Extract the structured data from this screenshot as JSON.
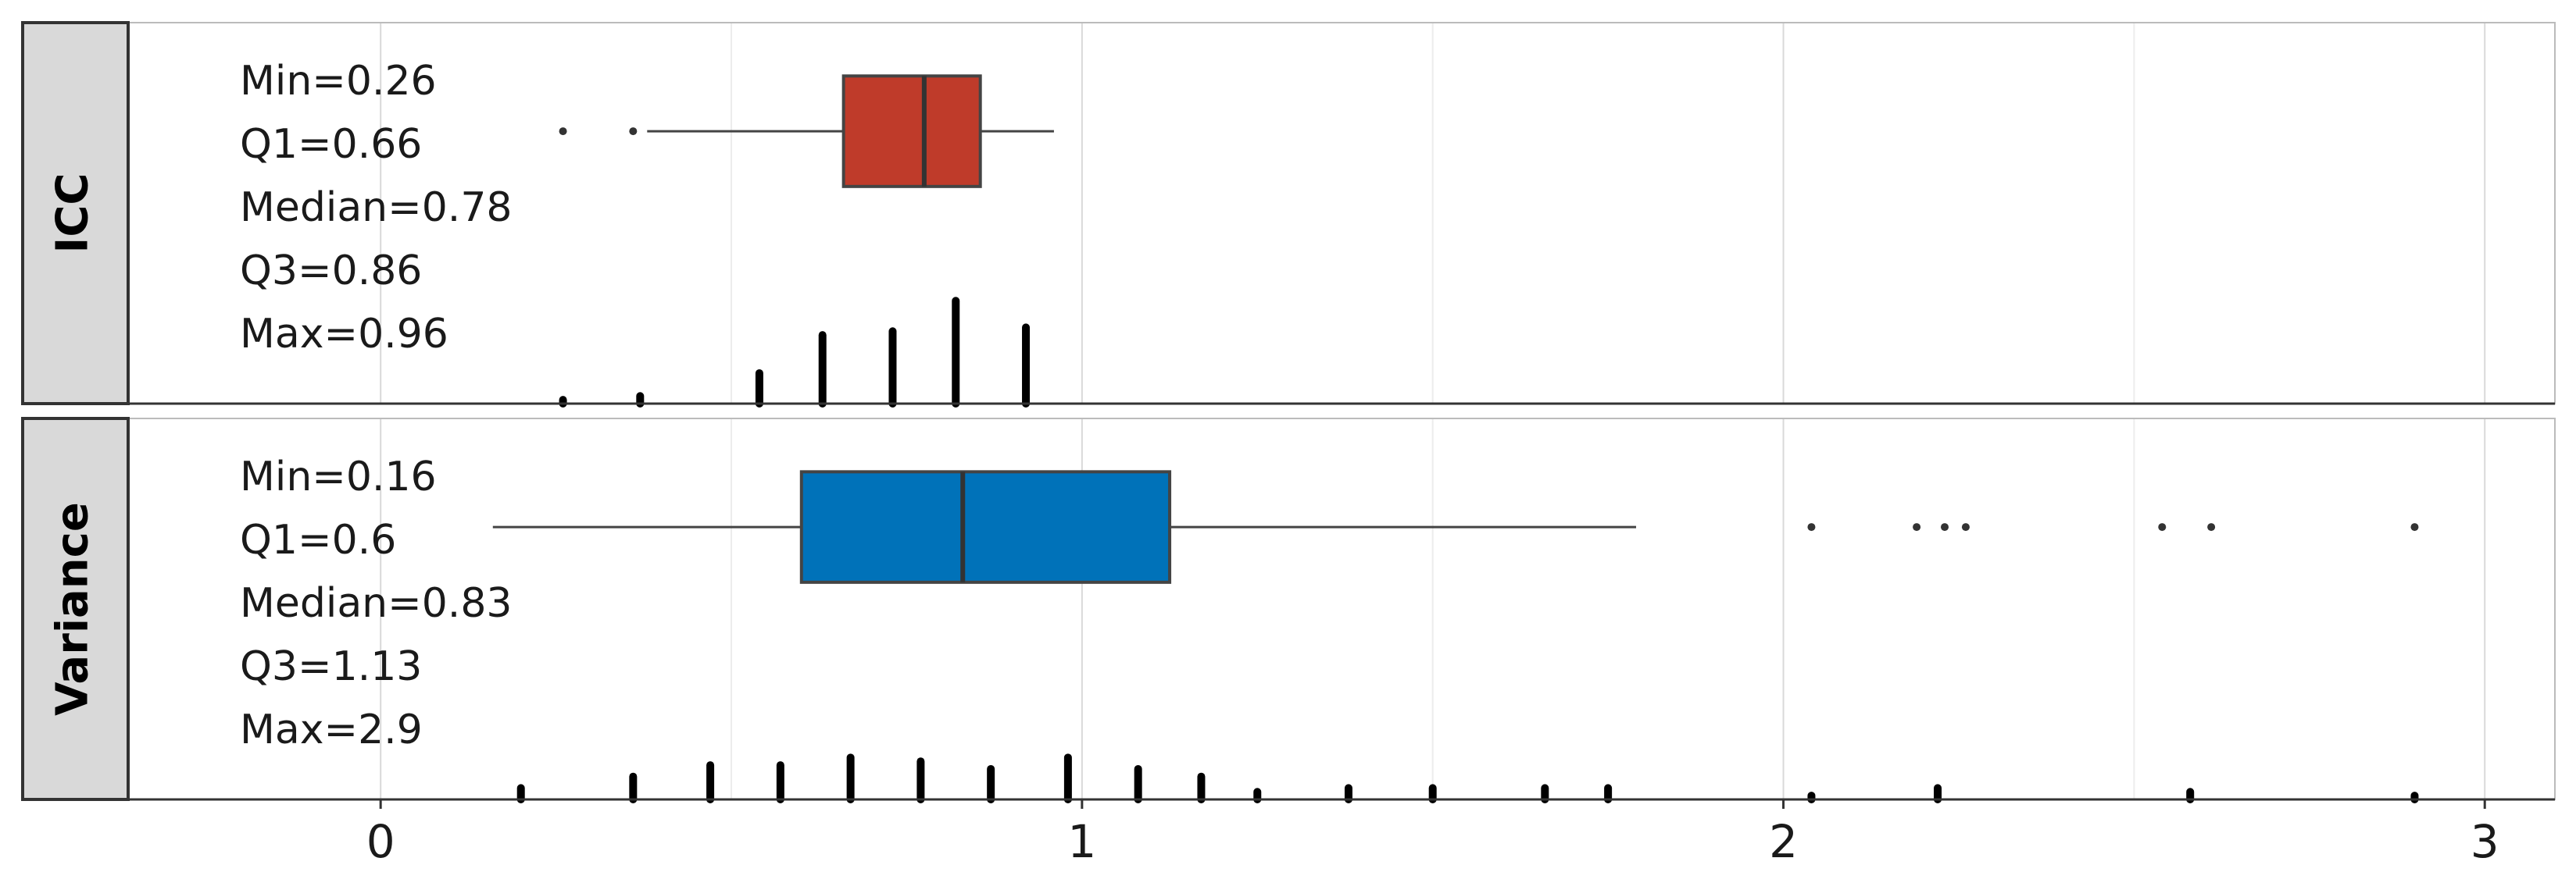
{
  "chart_data": [
    {
      "type": "box",
      "facet": "ICC",
      "color": "#bf3b2a",
      "annotations": [
        "Min=0.26",
        "Q1=0.66",
        "Median=0.78",
        "Q3=0.86",
        "Max=0.96"
      ],
      "box": {
        "whislo": 0.38,
        "q1": 0.66,
        "med": 0.775,
        "q3": 0.855,
        "whishi": 0.96
      },
      "fliers": [
        0.26,
        0.36
      ],
      "rug": {
        "x": [
          0.26,
          0.37,
          0.54,
          0.63,
          0.73,
          0.82,
          0.92
        ],
        "values": [
          1,
          2,
          8,
          18,
          19,
          27,
          20
        ]
      },
      "rug_ylim": [
        0,
        100
      ],
      "xlim": [
        -0.36,
        3.1
      ],
      "xticks": [
        0,
        1,
        2,
        3
      ],
      "xminor": [
        0.5,
        1.5,
        2.5
      ]
    },
    {
      "type": "box",
      "facet": "Variance",
      "color": "#0072b9",
      "annotations": [
        "Min=0.16",
        "Q1=0.6",
        "Median=0.83",
        "Q3=1.13",
        "Max=2.9"
      ],
      "box": {
        "whislo": 0.16,
        "q1": 0.6,
        "med": 0.83,
        "q3": 1.125,
        "whishi": 1.79
      },
      "fliers": [
        2.04,
        2.19,
        2.23,
        2.26,
        2.54,
        2.61,
        2.9
      ],
      "rug": {
        "x": [
          0.2,
          0.36,
          0.47,
          0.57,
          0.67,
          0.77,
          0.87,
          0.98,
          1.08,
          1.17,
          1.25,
          1.38,
          1.5,
          1.66,
          1.75,
          2.04,
          2.22,
          2.58,
          2.9
        ],
        "values": [
          3,
          6,
          9,
          9,
          11,
          10,
          8,
          11,
          8,
          6,
          2,
          3,
          3,
          3,
          3,
          1,
          3,
          2,
          1
        ]
      },
      "rug_ylim": [
        0,
        100
      ],
      "xlim": [
        -0.36,
        3.1
      ],
      "xticks": [
        0,
        1,
        2,
        3
      ],
      "xminor": [
        0.5,
        1.5,
        2.5
      ]
    }
  ]
}
